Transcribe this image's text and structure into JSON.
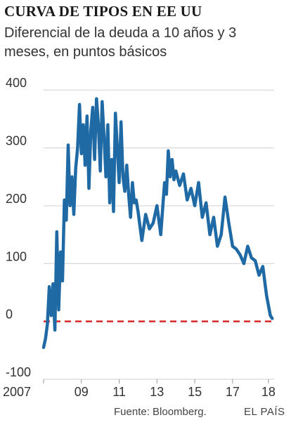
{
  "header": {
    "title": "CURVA DE TIPOS EN EE UU",
    "subtitle": "Diferencial de la deuda a 10 años y 3 meses, en puntos básicos"
  },
  "footer": {
    "source": "Fuente: Bloomberg.",
    "brand": "EL PAÍS"
  },
  "colors": {
    "series": "#1f6aa5",
    "zero_line": "#d62828",
    "grid": "#cfcfcf"
  },
  "chart_data": {
    "type": "line",
    "title": "CURVA DE TIPOS EN EE UU",
    "subtitle": "Diferencial de la deuda a 10 años y 3 meses, en puntos básicos",
    "xlabel": "",
    "ylabel": "",
    "xlim": [
      2007,
      2019.2
    ],
    "ylim": [
      -100,
      410
    ],
    "yticks": [
      400,
      300,
      200,
      100,
      0,
      -100
    ],
    "ytick_labels": [
      "400",
      "300",
      "200",
      "100",
      "0",
      "-100"
    ],
    "xticks": [
      2007,
      2009,
      2011,
      2013,
      2015,
      2017,
      2018.9
    ],
    "xtick_labels": [
      "2007",
      "09",
      "11",
      "13",
      "15",
      "17",
      "18"
    ],
    "grid": true,
    "reference_line": {
      "y": 0,
      "style": "dashed"
    },
    "series": [
      {
        "x": [
          2007.0,
          2007.1,
          2007.2,
          2007.3,
          2007.4,
          2007.5,
          2007.6,
          2007.7,
          2007.8,
          2007.9,
          2008.0,
          2008.1,
          2008.2,
          2008.3,
          2008.4,
          2008.5,
          2008.6,
          2008.7,
          2008.8,
          2008.9,
          2009.0,
          2009.1,
          2009.2,
          2009.3,
          2009.4,
          2009.5,
          2009.6,
          2009.7,
          2009.8,
          2009.9,
          2010.0,
          2010.1,
          2010.2,
          2010.3,
          2010.4,
          2010.5,
          2010.6,
          2010.7,
          2010.8,
          2010.9,
          2011.0,
          2011.1,
          2011.2,
          2011.3,
          2011.4,
          2011.5,
          2011.6,
          2011.7,
          2011.8,
          2011.9,
          2012.0,
          2012.2,
          2012.4,
          2012.6,
          2012.8,
          2013.0,
          2013.2,
          2013.4,
          2013.5,
          2013.6,
          2013.7,
          2013.8,
          2013.9,
          2014.0,
          2014.2,
          2014.4,
          2014.6,
          2014.8,
          2015.0,
          2015.2,
          2015.4,
          2015.6,
          2015.8,
          2016.0,
          2016.2,
          2016.4,
          2016.6,
          2016.8,
          2017.0,
          2017.2,
          2017.4,
          2017.6,
          2017.8,
          2018.0,
          2018.2,
          2018.4,
          2018.6,
          2018.8,
          2019.0,
          2019.1
        ],
        "values": [
          -45,
          -30,
          -5,
          60,
          10,
          65,
          -15,
          155,
          20,
          120,
          70,
          210,
          175,
          305,
          200,
          250,
          185,
          265,
          300,
          375,
          290,
          340,
          270,
          355,
          230,
          330,
          370,
          280,
          385,
          340,
          260,
          380,
          320,
          250,
          340,
          205,
          280,
          190,
          360,
          300,
          240,
          345,
          250,
          225,
          270,
          220,
          180,
          240,
          205,
          210,
          190,
          140,
          185,
          160,
          170,
          200,
          150,
          240,
          220,
          295,
          250,
          280,
          245,
          260,
          235,
          255,
          210,
          230,
          200,
          240,
          180,
          205,
          150,
          180,
          130,
          150,
          215,
          170,
          130,
          125,
          115,
          100,
          130,
          110,
          105,
          80,
          95,
          45,
          10,
          5
        ]
      }
    ]
  }
}
